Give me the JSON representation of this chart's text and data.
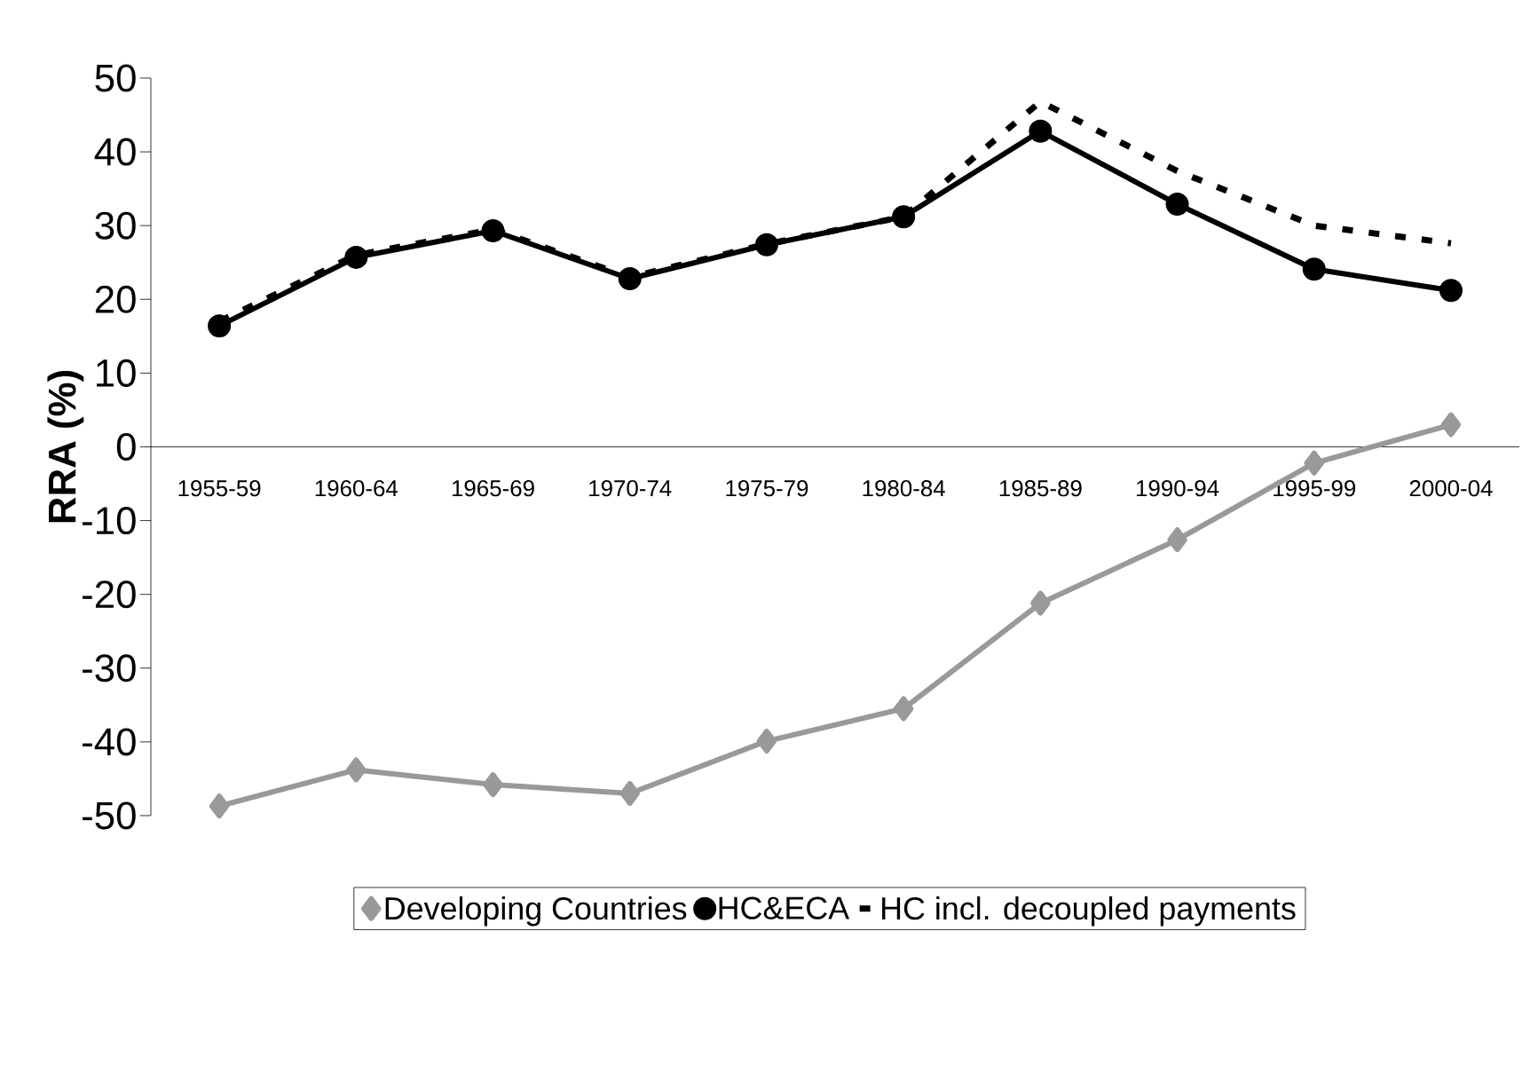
{
  "chart_data": {
    "type": "line",
    "ylabel": "RRA (%)",
    "categories": [
      "1955-59",
      "1960-64",
      "1965-69",
      "1970-74",
      "1975-79",
      "1980-84",
      "1985-89",
      "1990-94",
      "1995-99",
      "2000-04"
    ],
    "ylim": [
      -50,
      50
    ],
    "yticks": [
      -50,
      -40,
      -30,
      -20,
      -10,
      0,
      10,
      20,
      30,
      40,
      50
    ],
    "grid": false,
    "legend": "bottom",
    "series": [
      {
        "name": "Developing Countries",
        "color": "#999999",
        "marker": "diamond",
        "line_style": "solid",
        "values": [
          -48.7,
          -43.8,
          -45.8,
          -47,
          -39.9,
          -35.5,
          -21.2,
          -12.6,
          -2.2,
          3
        ]
      },
      {
        "name": "HC&ECA",
        "color": "#000000",
        "marker": "circle",
        "line_style": "solid",
        "values": [
          16.4,
          25.7,
          29.3,
          22.8,
          27.4,
          31.2,
          42.8,
          32.9,
          24.1,
          21.2
        ]
      },
      {
        "name": "HC incl. decoupled payments",
        "color": "#000000",
        "marker": "none",
        "line_style": "dashed",
        "values": [
          17,
          26,
          29.5,
          23,
          27.5,
          31.2,
          46.8,
          37.4,
          30,
          27.6
        ]
      }
    ]
  }
}
